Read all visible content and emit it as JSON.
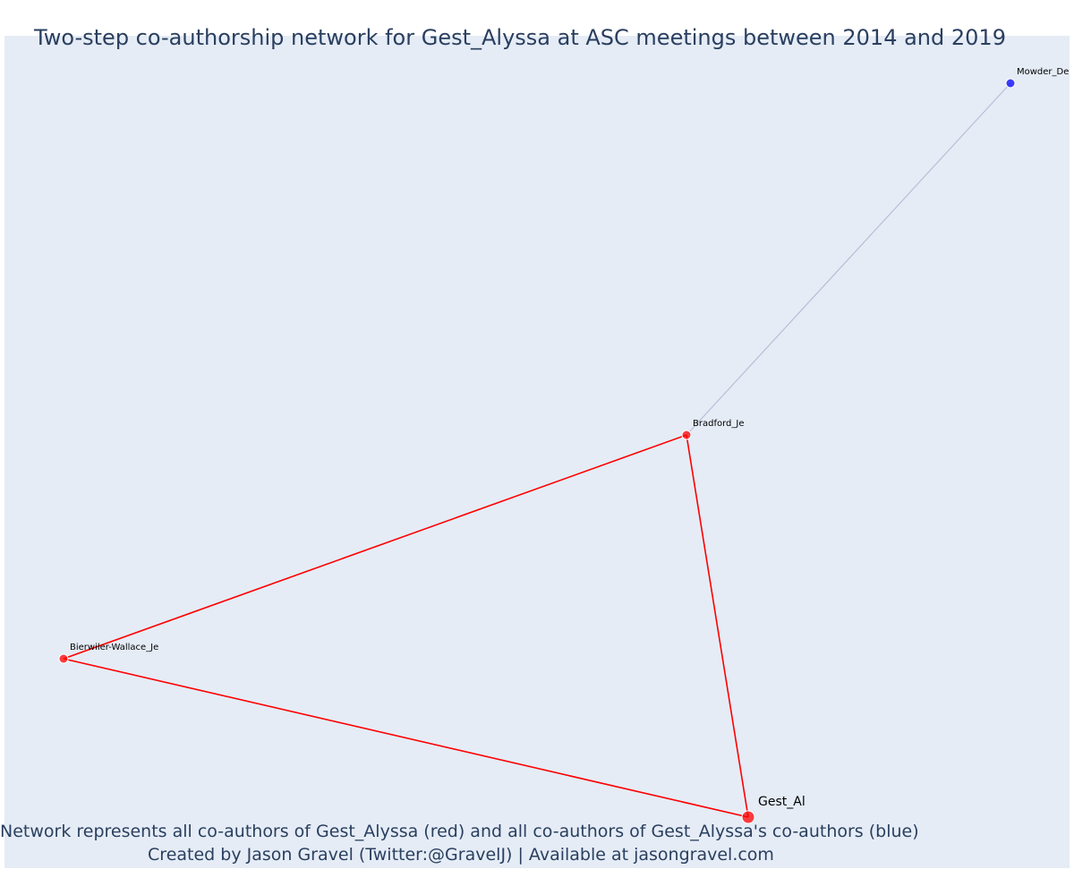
{
  "chart": {
    "title": "Two-step co-authorship network for Gest_Alyssa at ASC meetings between 2014 and 2019",
    "caption_line1": "Network represents all co-authors of Gest_Alyssa (red) and all co-authors of Gest_Alyssa's co-authors (blue)",
    "caption_line2": "Created by Jason Gravel (Twitter:@GravelJ) | Available at jasongravel.com"
  },
  "colors": {
    "plot_background": "#e5ecf6",
    "direct_coauthor": "#ff0000",
    "second_step_coauthor": "#0000ff",
    "direct_edge": "#ff0000",
    "second_step_edge": "#b8bfd6"
  },
  "chart_data": {
    "type": "network",
    "nodes": [
      {
        "id": "Gest_Al",
        "label": "Gest_Al",
        "group": "focal",
        "color": "#ff0000",
        "size": 12
      },
      {
        "id": "Bradford_Je",
        "label": "Bradford_Je",
        "group": "co-author",
        "color": "#ff0000",
        "size": 8
      },
      {
        "id": "Bierwiler-Wallace_Je",
        "label": "Bierwiler-Wallace_Je",
        "group": "co-author",
        "color": "#ff0000",
        "size": 8
      },
      {
        "id": "Mowder_De",
        "label": "Mowder_De",
        "group": "co-author-of-co-author",
        "color": "#0000ff",
        "size": 8
      }
    ],
    "edges": [
      {
        "source": "Gest_Al",
        "target": "Bradford_Je",
        "type": "direct"
      },
      {
        "source": "Gest_Al",
        "target": "Bierwiler-Wallace_Je",
        "type": "direct"
      },
      {
        "source": "Bradford_Je",
        "target": "Bierwiler-Wallace_Je",
        "type": "direct"
      },
      {
        "source": "Bradford_Je",
        "target": "Mowder_De",
        "type": "second-step"
      }
    ]
  }
}
